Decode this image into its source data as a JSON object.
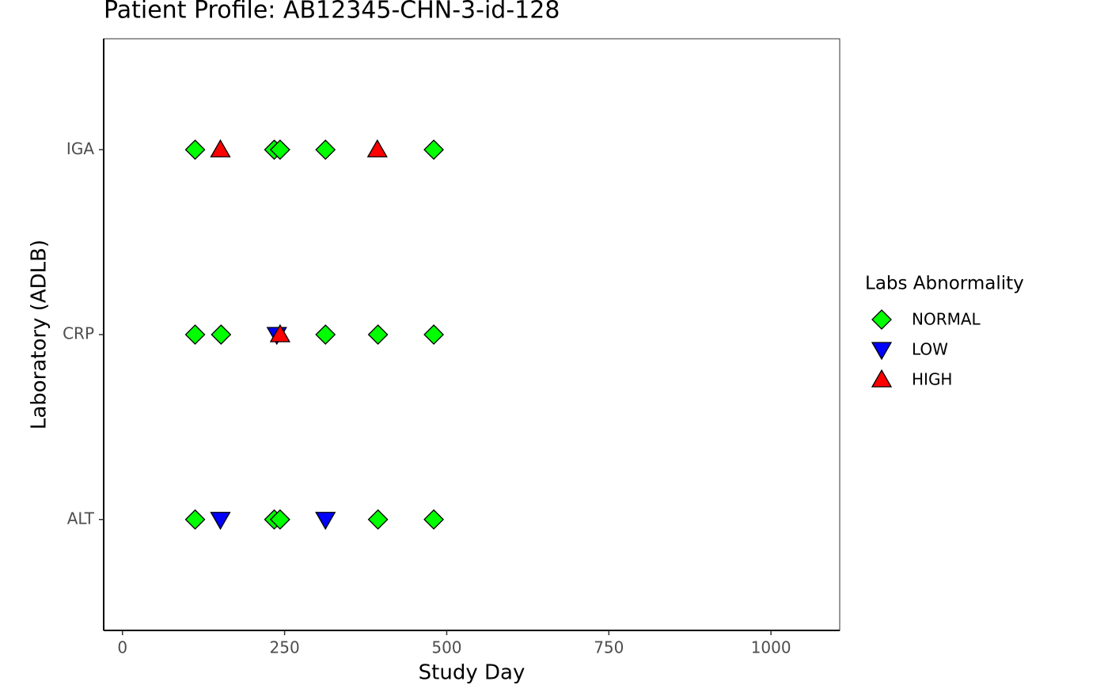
{
  "chart_data": {
    "type": "scatter",
    "title": "Patient Profile:  AB12345-CHN-3-id-128",
    "x_label": "Study Day",
    "y_label": "Laboratory (ADLB)",
    "legend_title": "Labs Abnormality",
    "categories": [
      "ALT",
      "CRP",
      "IGA"
    ],
    "xlim": [
      -29,
      1106
    ],
    "xticks": [
      0,
      250,
      500,
      750,
      1000
    ],
    "series": [
      {
        "name": "NORMAL",
        "color": "#00ff00",
        "marker": "diamond",
        "x": [
          112,
          234,
          243,
          313,
          480,
          112,
          152,
          313,
          394,
          480,
          112,
          234,
          243,
          394,
          480
        ],
        "y": [
          "IGA",
          "IGA",
          "IGA",
          "IGA",
          "IGA",
          "CRP",
          "CRP",
          "CRP",
          "CRP",
          "CRP",
          "ALT",
          "ALT",
          "ALT",
          "ALT",
          "ALT"
        ]
      },
      {
        "name": "LOW",
        "color": "#0000ff",
        "marker": "triangle-down",
        "x": [
          238,
          151,
          313
        ],
        "y": [
          "CRP",
          "ALT",
          "ALT"
        ]
      },
      {
        "name": "HIGH",
        "color": "#ff0000",
        "marker": "triangle-up",
        "x": [
          151,
          393,
          243
        ],
        "y": [
          "IGA",
          "IGA",
          "CRP"
        ]
      }
    ]
  }
}
